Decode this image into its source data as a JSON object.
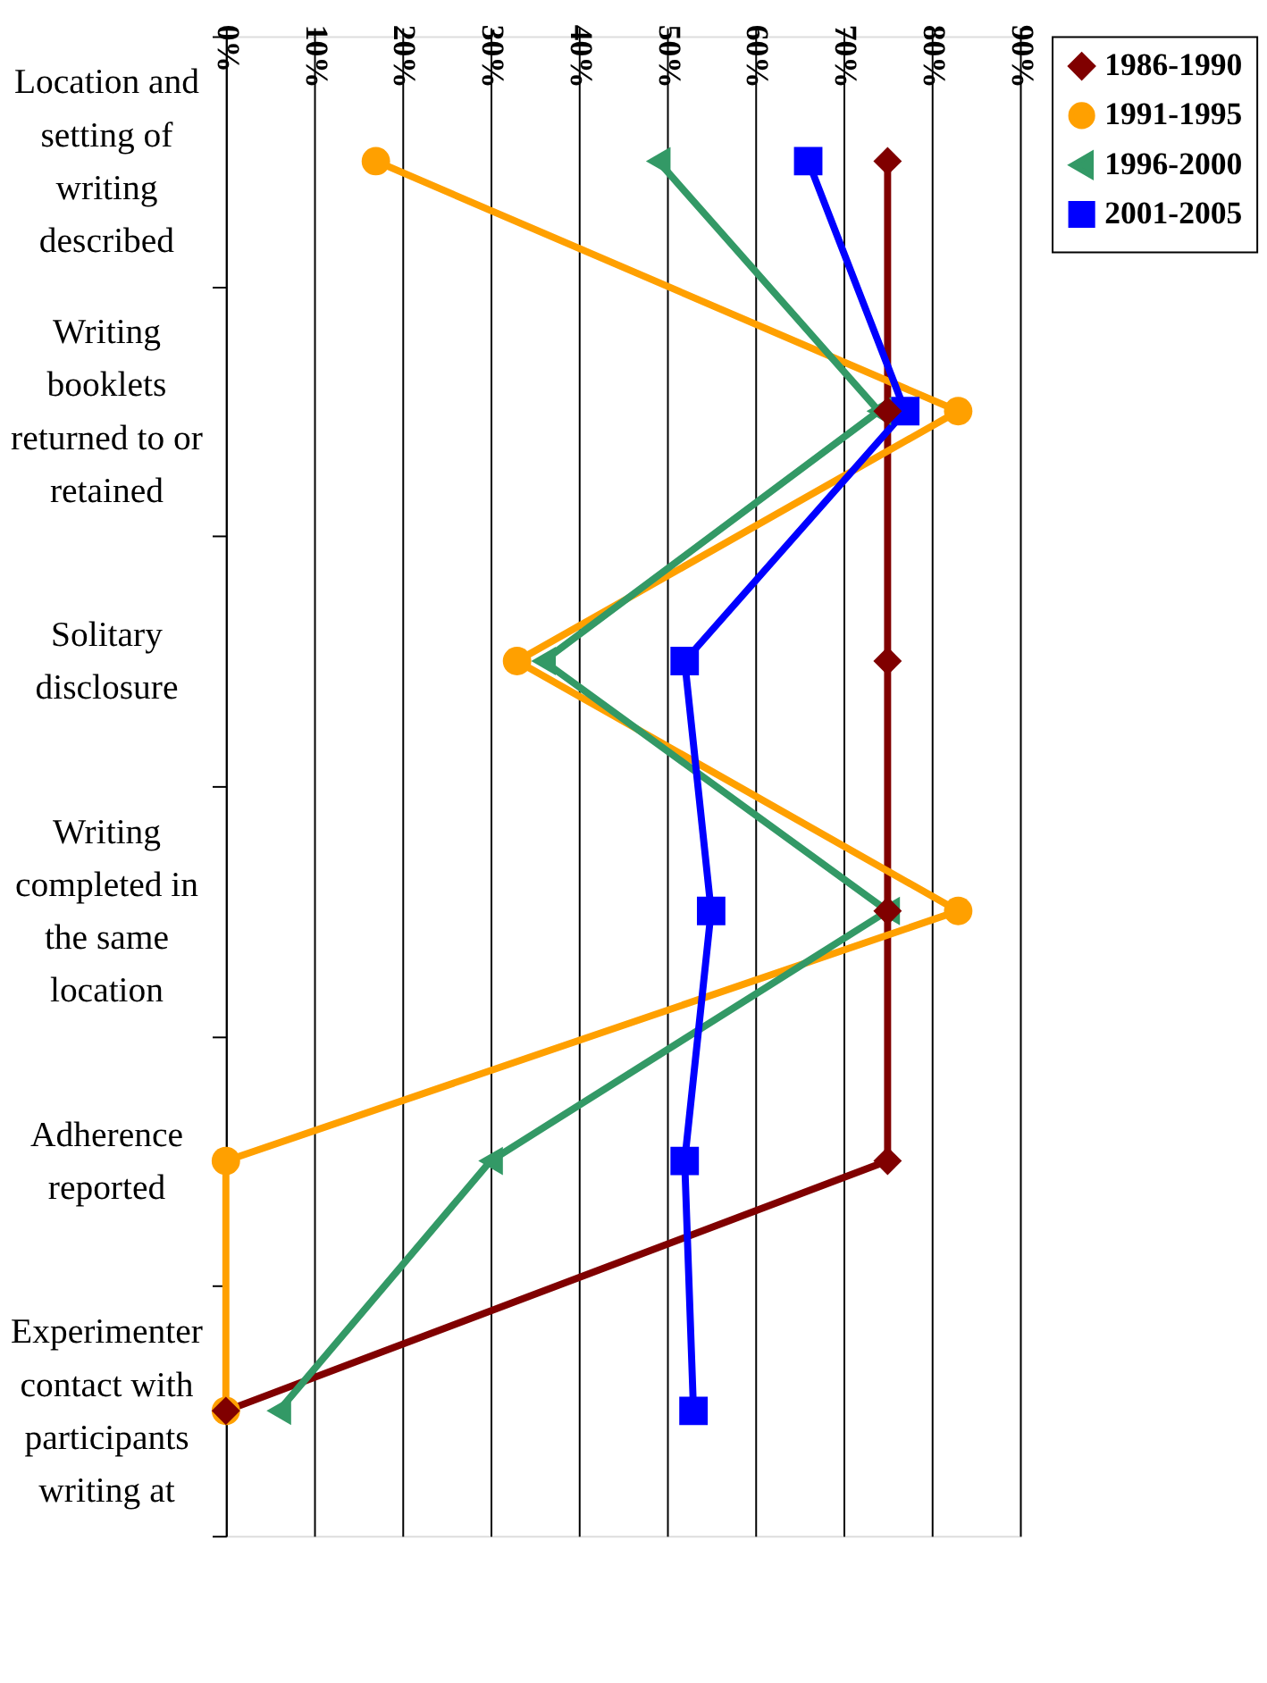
{
  "chart_data": {
    "type": "line",
    "orientation": "horizontal",
    "categories": [
      "Location and setting of writing described",
      "Writing booklets returned to or retained",
      "Solitary disclosure",
      "Writing completed in the same location",
      "Adherence reported",
      "Experimenter contact with participants writing at"
    ],
    "series": [
      {
        "name": "1986-1990",
        "color": "#800000",
        "marker": "diamond",
        "values": [
          75,
          75,
          75,
          75,
          75,
          0
        ]
      },
      {
        "name": "1991-1995",
        "color": "#ffa000",
        "marker": "circle",
        "values": [
          17,
          83,
          33,
          83,
          0,
          0
        ]
      },
      {
        "name": "1996-2000",
        "color": "#339966",
        "marker": "triangle",
        "values": [
          49,
          74,
          36,
          75,
          30,
          6
        ]
      },
      {
        "name": "2001-2005",
        "color": "#0000ff",
        "marker": "square",
        "values": [
          66,
          77,
          52,
          55,
          52,
          53
        ]
      }
    ],
    "xlim": [
      0,
      90
    ],
    "xticks": [
      {
        "value": 0,
        "label": "0%"
      },
      {
        "value": 10,
        "label": "10%"
      },
      {
        "value": 20,
        "label": "20%"
      },
      {
        "value": 30,
        "label": "30%"
      },
      {
        "value": 40,
        "label": "40%"
      },
      {
        "value": 50,
        "label": "50%"
      },
      {
        "value": 60,
        "label": "60%"
      },
      {
        "value": 70,
        "label": "70%"
      },
      {
        "value": 80,
        "label": "80%"
      },
      {
        "value": 90,
        "label": "90%"
      }
    ],
    "grid": "x",
    "legend": "right"
  }
}
